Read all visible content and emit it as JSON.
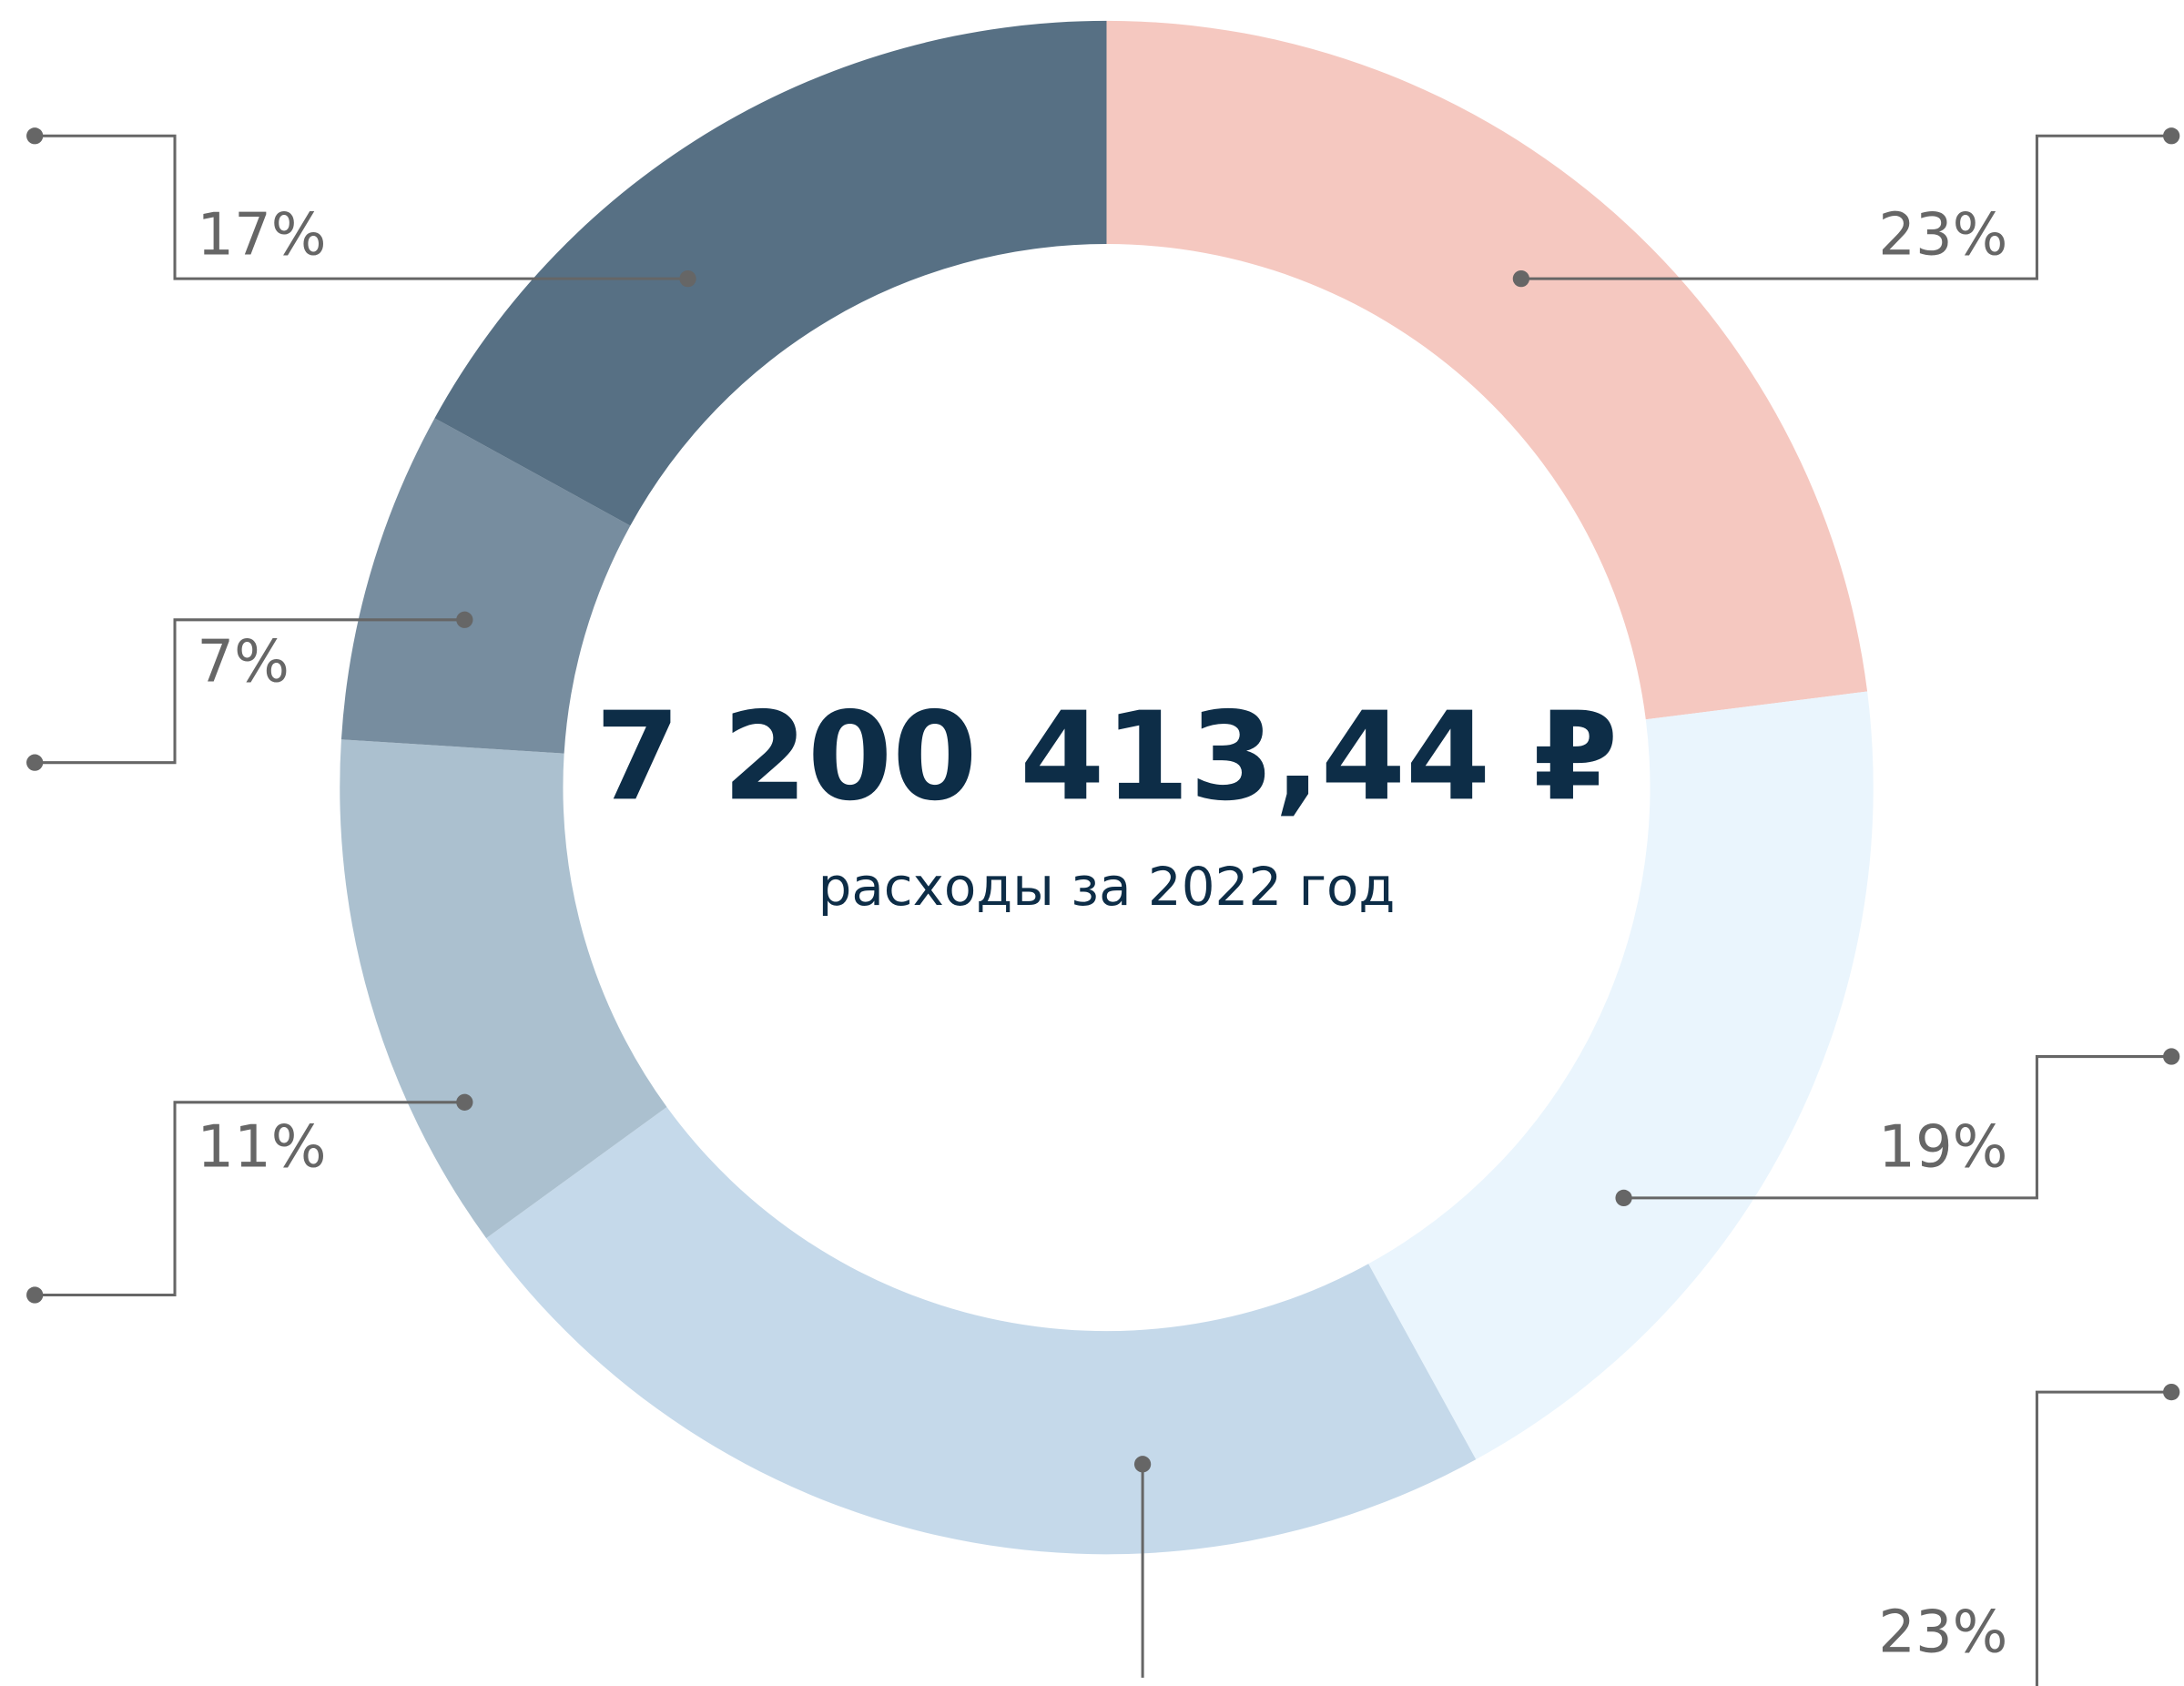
{
  "chart_data": {
    "type": "donut",
    "center_label": "7 200 413,44 ₽",
    "subtitle": "расходы за 2022 год",
    "values": [
      23,
      19,
      23,
      11,
      7,
      17
    ],
    "value_labels": [
      "23%",
      "19%",
      "23%",
      "11%",
      "7%",
      "17%"
    ],
    "colors": [
      "#f5c8c0",
      "#eaf5fd",
      "#c5d9ea",
      "#abc0cf",
      "#778d9f",
      "#577084"
    ]
  }
}
